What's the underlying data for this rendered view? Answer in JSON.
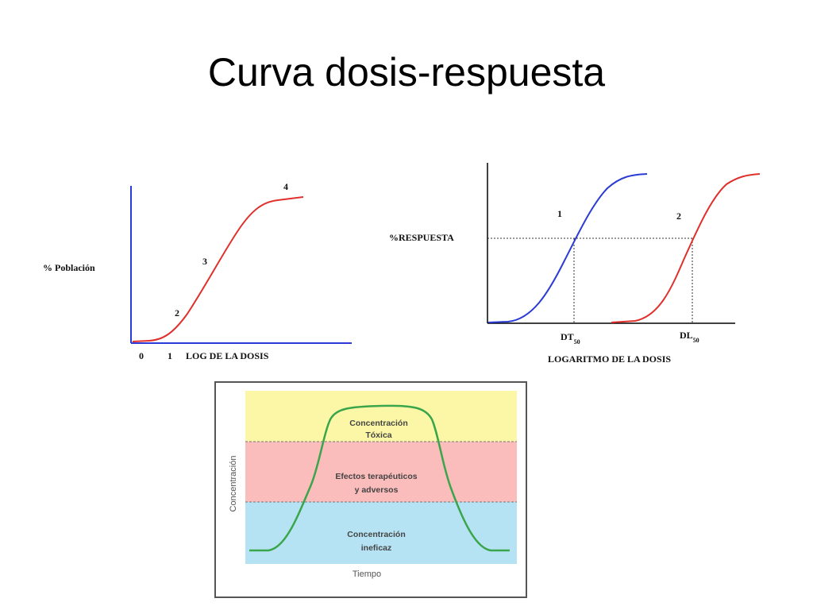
{
  "slide": {
    "title": "Curva dosis-respuesta"
  },
  "colors": {
    "red_curve": "#e0302c",
    "blue_curve": "#2b3bd6",
    "blue_axis": "#2b3bd6",
    "toxic_band": "#fbf7a6",
    "therapeutic_band": "#fbbcbc",
    "ineffective_band": "#b6e3f4",
    "concentration_curve": "#3aa54a"
  },
  "chart1": {
    "ylabel": "% Población",
    "xlabel": "LOG DE LA DOSIS",
    "x_ticks": [
      "0",
      "1"
    ],
    "stage_labels": [
      "2",
      "3",
      "4"
    ]
  },
  "chart2": {
    "ylabel": "%RESPUESTA",
    "xlabel": "LOGARITMO DE LA DOSIS",
    "curve_labels": [
      "1",
      "2"
    ],
    "marker1_main": "DT",
    "marker1_sub": "50",
    "marker2_main": "DL",
    "marker2_sub": "50"
  },
  "chart3": {
    "ylabel": "Concentración",
    "xlabel": "Tiempo",
    "zones": {
      "toxic_line1": "Concentración",
      "toxic_line2": "Tóxica",
      "therapeutic_line1": "Efectos terapéuticos",
      "therapeutic_line2": "y adversos",
      "ineffective_line1": "Concentración",
      "ineffective_line2": "ineficaz"
    }
  }
}
